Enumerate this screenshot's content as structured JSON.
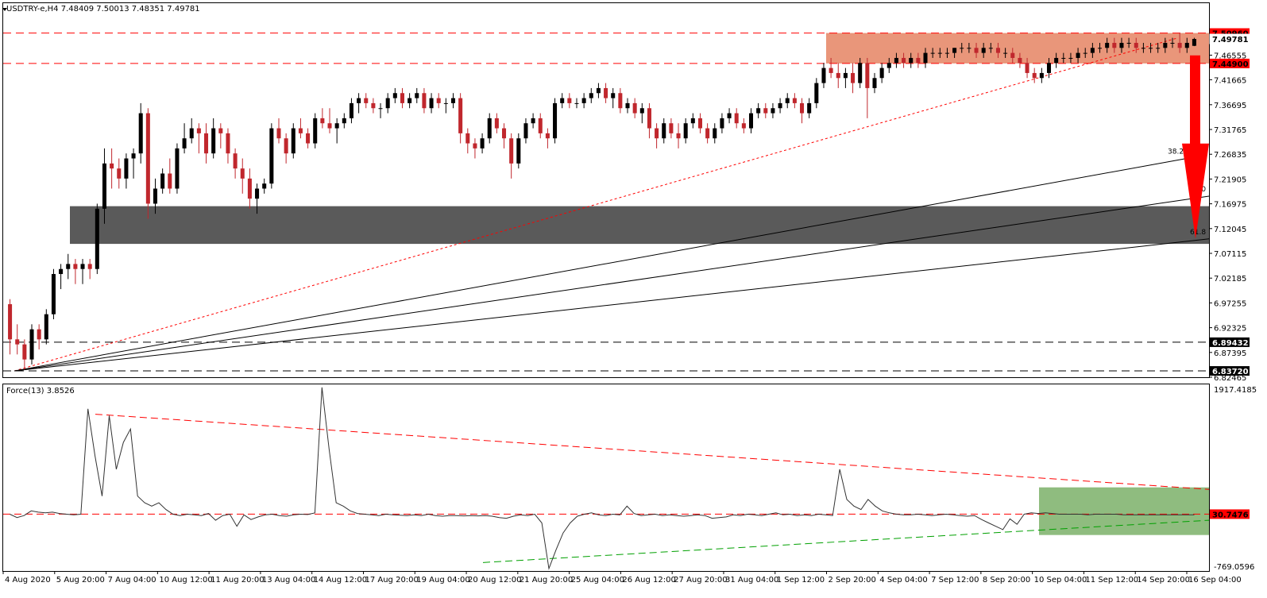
{
  "header": {
    "symbol_line": "USDTRY-e,H4  7.48409 7.50013 7.48351 7.49781",
    "indicator_line": "Force(13) 3.8526"
  },
  "colors": {
    "bull": "#000000",
    "bear": "#c0272d",
    "resistance_zone": "#e9967a",
    "support_zone": "#5a5a5a",
    "force_zone": "#8fbc7f",
    "arrow": "#ff0000",
    "tag_red": "#ff0000"
  },
  "chart_data": [
    {
      "type": "candlestick",
      "symbol": "USDTRY-e",
      "timeframe": "H4",
      "last_bar": {
        "open": 7.48409,
        "high": 7.50013,
        "low": 7.48351,
        "close": 7.49781
      },
      "ylim": [
        6.82465,
        7.55
      ],
      "y_ticks": [
        "7.46555",
        "7.41665",
        "7.36695",
        "7.31765",
        "7.26835",
        "7.21905",
        "7.16975",
        "7.12045",
        "7.07115",
        "7.02185",
        "6.97255",
        "6.92325",
        "6.87395",
        "6.82465"
      ],
      "x_ticks": [
        "4 Aug 2020",
        "5 Aug 20:00",
        "7 Aug 04:00",
        "10 Aug 12:00",
        "11 Aug 20:00",
        "13 Aug 04:00",
        "14 Aug 12:00",
        "17 Aug 20:00",
        "19 Aug 04:00",
        "20 Aug 12:00",
        "21 Aug 20:00",
        "25 Aug 04:00",
        "26 Aug 12:00",
        "27 Aug 20:00",
        "31 Aug 04:00",
        "1 Sep 12:00",
        "2 Sep 20:00",
        "4 Sep 04:00",
        "7 Sep 12:00",
        "8 Sep 20:00",
        "10 Sep 04:00",
        "11 Sep 12:00",
        "14 Sep 20:00",
        "16 Sep 04:00"
      ],
      "price_tags": [
        {
          "label": "7.50960",
          "value": 7.5096,
          "style": "red"
        },
        {
          "label": "7.49781",
          "value": 7.49781,
          "style": "plain"
        },
        {
          "label": "7.44900",
          "value": 7.449,
          "style": "red"
        },
        {
          "label": "6.89432",
          "value": 6.89432,
          "style": "dark"
        },
        {
          "label": "6.83720",
          "value": 6.8372,
          "style": "dark"
        }
      ],
      "horizontal_levels": [
        7.5096,
        7.449,
        6.89432,
        6.8372
      ],
      "resistance_zone": [
        7.449,
        7.5096
      ],
      "support_zone": [
        7.09,
        7.165
      ],
      "fibonacci_fan": {
        "labels": [
          "38.2",
          "50.0",
          "61.8"
        ],
        "origin": 6.8372,
        "ends": [
          7.26,
          7.185,
          7.1
        ]
      },
      "trendline_end": 7.5,
      "arrow": {
        "from": 7.465,
        "to": 7.1
      },
      "candles": [
        [
          6.97,
          6.98,
          6.87,
          6.9
        ],
        [
          6.9,
          6.93,
          6.87,
          6.89
        ],
        [
          6.89,
          6.9,
          6.84,
          6.86
        ],
        [
          6.86,
          6.93,
          6.85,
          6.92
        ],
        [
          6.92,
          6.93,
          6.88,
          6.9
        ],
        [
          6.9,
          6.96,
          6.89,
          6.95
        ],
        [
          6.95,
          7.04,
          6.94,
          7.03
        ],
        [
          7.03,
          7.05,
          7.0,
          7.04
        ],
        [
          7.04,
          7.07,
          7.02,
          7.05
        ],
        [
          7.05,
          7.06,
          7.01,
          7.04
        ],
        [
          7.04,
          7.06,
          7.01,
          7.05
        ],
        [
          7.05,
          7.06,
          7.02,
          7.04
        ],
        [
          7.04,
          7.17,
          7.03,
          7.16
        ],
        [
          7.16,
          7.28,
          7.13,
          7.25
        ],
        [
          7.25,
          7.28,
          7.2,
          7.24
        ],
        [
          7.24,
          7.26,
          7.2,
          7.22
        ],
        [
          7.22,
          7.27,
          7.2,
          7.26
        ],
        [
          7.26,
          7.28,
          7.22,
          7.27
        ],
        [
          7.27,
          7.37,
          7.25,
          7.35
        ],
        [
          7.35,
          7.36,
          7.14,
          7.17
        ],
        [
          7.17,
          7.22,
          7.15,
          7.2
        ],
        [
          7.2,
          7.24,
          7.19,
          7.23
        ],
        [
          7.23,
          7.26,
          7.19,
          7.2
        ],
        [
          7.2,
          7.29,
          7.19,
          7.28
        ],
        [
          7.28,
          7.33,
          7.27,
          7.3
        ],
        [
          7.3,
          7.34,
          7.29,
          7.32
        ],
        [
          7.32,
          7.33,
          7.27,
          7.31
        ],
        [
          7.31,
          7.33,
          7.25,
          7.27
        ],
        [
          7.27,
          7.34,
          7.26,
          7.32
        ],
        [
          7.32,
          7.33,
          7.28,
          7.31
        ],
        [
          7.31,
          7.32,
          7.25,
          7.27
        ],
        [
          7.27,
          7.28,
          7.22,
          7.24
        ],
        [
          7.24,
          7.26,
          7.19,
          7.22
        ],
        [
          7.22,
          7.24,
          7.16,
          7.18
        ],
        [
          7.18,
          7.21,
          7.15,
          7.2
        ],
        [
          7.2,
          7.22,
          7.19,
          7.21
        ],
        [
          7.21,
          7.33,
          7.2,
          7.32
        ],
        [
          7.32,
          7.34,
          7.29,
          7.3
        ],
        [
          7.3,
          7.31,
          7.25,
          7.27
        ],
        [
          7.27,
          7.33,
          7.26,
          7.32
        ],
        [
          7.32,
          7.34,
          7.3,
          7.31
        ],
        [
          7.31,
          7.32,
          7.28,
          7.29
        ],
        [
          7.29,
          7.35,
          7.28,
          7.34
        ],
        [
          7.34,
          7.36,
          7.32,
          7.33
        ],
        [
          7.33,
          7.36,
          7.31,
          7.32
        ],
        [
          7.32,
          7.34,
          7.29,
          7.33
        ],
        [
          7.33,
          7.35,
          7.32,
          7.34
        ],
        [
          7.34,
          7.38,
          7.33,
          7.37
        ],
        [
          7.37,
          7.39,
          7.35,
          7.38
        ],
        [
          7.38,
          7.39,
          7.36,
          7.37
        ],
        [
          7.37,
          7.38,
          7.35,
          7.36
        ],
        [
          7.36,
          7.37,
          7.34,
          7.36
        ],
        [
          7.36,
          7.39,
          7.35,
          7.38
        ],
        [
          7.38,
          7.4,
          7.37,
          7.39
        ],
        [
          7.39,
          7.4,
          7.36,
          7.37
        ],
        [
          7.37,
          7.39,
          7.36,
          7.38
        ],
        [
          7.38,
          7.4,
          7.37,
          7.39
        ],
        [
          7.39,
          7.4,
          7.35,
          7.36
        ],
        [
          7.36,
          7.39,
          7.35,
          7.38
        ],
        [
          7.38,
          7.39,
          7.36,
          7.37
        ],
        [
          7.37,
          7.38,
          7.35,
          7.37
        ],
        [
          7.37,
          7.39,
          7.36,
          7.38
        ],
        [
          7.38,
          7.39,
          7.29,
          7.31
        ],
        [
          7.31,
          7.32,
          7.27,
          7.29
        ],
        [
          7.29,
          7.3,
          7.26,
          7.28
        ],
        [
          7.28,
          7.31,
          7.27,
          7.3
        ],
        [
          7.3,
          7.35,
          7.29,
          7.34
        ],
        [
          7.34,
          7.35,
          7.31,
          7.32
        ],
        [
          7.32,
          7.33,
          7.28,
          7.3
        ],
        [
          7.3,
          7.31,
          7.22,
          7.25
        ],
        [
          7.25,
          7.31,
          7.24,
          7.3
        ],
        [
          7.3,
          7.34,
          7.29,
          7.33
        ],
        [
          7.33,
          7.35,
          7.32,
          7.34
        ],
        [
          7.34,
          7.35,
          7.3,
          7.31
        ],
        [
          7.31,
          7.32,
          7.28,
          7.3
        ],
        [
          7.3,
          7.38,
          7.29,
          7.37
        ],
        [
          7.37,
          7.39,
          7.36,
          7.38
        ],
        [
          7.38,
          7.39,
          7.36,
          7.37
        ],
        [
          7.37,
          7.38,
          7.36,
          7.37
        ],
        [
          7.37,
          7.39,
          7.36,
          7.38
        ],
        [
          7.38,
          7.4,
          7.37,
          7.39
        ],
        [
          7.39,
          7.41,
          7.38,
          7.4
        ],
        [
          7.4,
          7.41,
          7.37,
          7.38
        ],
        [
          7.38,
          7.4,
          7.36,
          7.39
        ],
        [
          7.39,
          7.4,
          7.35,
          7.36
        ],
        [
          7.36,
          7.38,
          7.35,
          7.37
        ],
        [
          7.37,
          7.38,
          7.34,
          7.35
        ],
        [
          7.35,
          7.37,
          7.33,
          7.36
        ],
        [
          7.36,
          7.37,
          7.3,
          7.32
        ],
        [
          7.32,
          7.33,
          7.28,
          7.3
        ],
        [
          7.3,
          7.34,
          7.29,
          7.33
        ],
        [
          7.33,
          7.34,
          7.3,
          7.31
        ],
        [
          7.31,
          7.33,
          7.28,
          7.3
        ],
        [
          7.3,
          7.34,
          7.29,
          7.33
        ],
        [
          7.33,
          7.35,
          7.32,
          7.34
        ],
        [
          7.34,
          7.35,
          7.31,
          7.32
        ],
        [
          7.32,
          7.33,
          7.29,
          7.3
        ],
        [
          7.3,
          7.33,
          7.29,
          7.32
        ],
        [
          7.32,
          7.35,
          7.31,
          7.34
        ],
        [
          7.34,
          7.36,
          7.33,
          7.35
        ],
        [
          7.35,
          7.36,
          7.32,
          7.33
        ],
        [
          7.33,
          7.34,
          7.31,
          7.32
        ],
        [
          7.32,
          7.36,
          7.31,
          7.35
        ],
        [
          7.35,
          7.37,
          7.34,
          7.36
        ],
        [
          7.36,
          7.37,
          7.34,
          7.35
        ],
        [
          7.35,
          7.37,
          7.34,
          7.36
        ],
        [
          7.36,
          7.38,
          7.35,
          7.37
        ],
        [
          7.37,
          7.39,
          7.36,
          7.38
        ],
        [
          7.38,
          7.39,
          7.36,
          7.37
        ],
        [
          7.37,
          7.38,
          7.33,
          7.35
        ],
        [
          7.35,
          7.38,
          7.34,
          7.37
        ],
        [
          7.37,
          7.42,
          7.36,
          7.41
        ],
        [
          7.41,
          7.45,
          7.4,
          7.44
        ],
        [
          7.44,
          7.46,
          7.42,
          7.43
        ],
        [
          7.43,
          7.45,
          7.4,
          7.42
        ],
        [
          7.42,
          7.44,
          7.4,
          7.43
        ],
        [
          7.43,
          7.45,
          7.39,
          7.41
        ],
        [
          7.41,
          7.46,
          7.4,
          7.45
        ],
        [
          7.45,
          7.46,
          7.34,
          7.4
        ],
        [
          7.4,
          7.43,
          7.39,
          7.42
        ],
        [
          7.42,
          7.45,
          7.41,
          7.44
        ],
        [
          7.44,
          7.46,
          7.43,
          7.45
        ],
        [
          7.45,
          7.47,
          7.44,
          7.46
        ],
        [
          7.46,
          7.47,
          7.44,
          7.45
        ],
        [
          7.45,
          7.47,
          7.44,
          7.46
        ],
        [
          7.46,
          7.47,
          7.44,
          7.45
        ],
        [
          7.45,
          7.48,
          7.44,
          7.47
        ],
        [
          7.47,
          7.48,
          7.46,
          7.47
        ],
        [
          7.47,
          7.48,
          7.46,
          7.47
        ],
        [
          7.47,
          7.48,
          7.46,
          7.47
        ],
        [
          7.47,
          7.48,
          7.46,
          7.48
        ],
        [
          7.48,
          7.49,
          7.47,
          7.48
        ],
        [
          7.48,
          7.49,
          7.47,
          7.48
        ],
        [
          7.48,
          7.49,
          7.46,
          7.47
        ],
        [
          7.47,
          7.49,
          7.46,
          7.48
        ],
        [
          7.48,
          7.49,
          7.47,
          7.48
        ],
        [
          7.48,
          7.49,
          7.46,
          7.47
        ],
        [
          7.47,
          7.48,
          7.46,
          7.47
        ],
        [
          7.47,
          7.48,
          7.45,
          7.46
        ],
        [
          7.46,
          7.47,
          7.44,
          7.45
        ],
        [
          7.45,
          7.46,
          7.42,
          7.43
        ],
        [
          7.43,
          7.44,
          7.41,
          7.42
        ],
        [
          7.42,
          7.44,
          7.41,
          7.43
        ],
        [
          7.43,
          7.46,
          7.42,
          7.45
        ],
        [
          7.45,
          7.47,
          7.44,
          7.46
        ],
        [
          7.46,
          7.47,
          7.45,
          7.46
        ],
        [
          7.46,
          7.47,
          7.45,
          7.46
        ],
        [
          7.46,
          7.48,
          7.45,
          7.47
        ],
        [
          7.47,
          7.48,
          7.46,
          7.47
        ],
        [
          7.47,
          7.49,
          7.46,
          7.48
        ],
        [
          7.48,
          7.49,
          7.47,
          7.48
        ],
        [
          7.48,
          7.5,
          7.47,
          7.49
        ],
        [
          7.49,
          7.5,
          7.47,
          7.48
        ],
        [
          7.48,
          7.5,
          7.47,
          7.49
        ],
        [
          7.49,
          7.5,
          7.48,
          7.49
        ],
        [
          7.49,
          7.5,
          7.47,
          7.48
        ],
        [
          7.48,
          7.49,
          7.47,
          7.48
        ],
        [
          7.48,
          7.49,
          7.47,
          7.48
        ],
        [
          7.48,
          7.49,
          7.47,
          7.48
        ],
        [
          7.48,
          7.5,
          7.47,
          7.49
        ],
        [
          7.49,
          7.5,
          7.48,
          7.49
        ],
        [
          7.49,
          7.51,
          7.47,
          7.48
        ],
        [
          7.48,
          7.5,
          7.47,
          7.49
        ],
        [
          7.48409,
          7.50013,
          7.48351,
          7.49781
        ]
      ]
    },
    {
      "type": "line",
      "indicator": "Force(13)",
      "last_value": 3.8526,
      "ylim": [
        -769.0596,
        1917.4185
      ],
      "y_ticks": [
        "1917.4185",
        "-769.0596"
      ],
      "price_tags": [
        {
          "label": "30.7476",
          "value": 30.7476,
          "style": "red"
        }
      ],
      "horizontal_level": 30.7476,
      "zone": [
        -280,
        430
      ],
      "descending_trendline": [
        1520,
        400
      ],
      "ascending_trendline": [
        -690,
        -60
      ],
      "values": [
        30,
        -20,
        10,
        80,
        60,
        50,
        60,
        40,
        30,
        20,
        30,
        1600,
        900,
        300,
        1500,
        700,
        1100,
        1300,
        300,
        200,
        150,
        200,
        100,
        30,
        10,
        30,
        20,
        10,
        40,
        -60,
        10,
        30,
        -150,
        20,
        -50,
        -10,
        20,
        30,
        10,
        0,
        20,
        30,
        25,
        50,
        1920,
        1000,
        200,
        150,
        80,
        40,
        30,
        20,
        10,
        30,
        20,
        15,
        10,
        20,
        10,
        30,
        10,
        0,
        10,
        10,
        5,
        10,
        5,
        10,
        0,
        -20,
        -30,
        0,
        20,
        10,
        30,
        -100,
        -780,
        -500,
        -250,
        -100,
        0,
        30,
        50,
        20,
        10,
        30,
        20,
        150,
        40,
        10,
        20,
        30,
        10,
        20,
        10,
        0,
        10,
        20,
        10,
        -30,
        -20,
        -10,
        20,
        10,
        30,
        20,
        10,
        30,
        50,
        20,
        30,
        10,
        20,
        10,
        30,
        20,
        10,
        700,
        250,
        150,
        100,
        250,
        150,
        80,
        50,
        30,
        20,
        20,
        30,
        20,
        10,
        20,
        30,
        20,
        10,
        0,
        10,
        -50,
        -100,
        -150,
        -200,
        -40,
        -120,
        30,
        50,
        40,
        50,
        40,
        30,
        30,
        30,
        30,
        20,
        30,
        30,
        30,
        30,
        20,
        20,
        20,
        20,
        20,
        20,
        20,
        20,
        20,
        20,
        20
      ]
    }
  ]
}
